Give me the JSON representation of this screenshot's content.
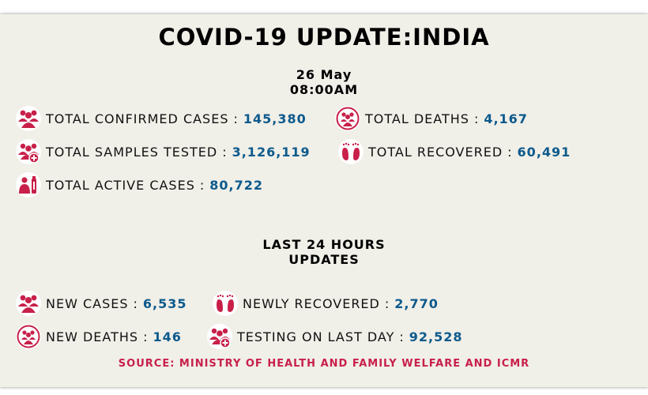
{
  "title": "COVID-19 UPDATE:INDIA",
  "date": {
    "day": "26 May",
    "time": "08:00AM"
  },
  "totals": {
    "confirmed": {
      "label": "TOTAL CONFIRMED CASES",
      "value": "145,380",
      "icon": "people-group-icon"
    },
    "deaths": {
      "label": "TOTAL DEATHS",
      "value": "4,167",
      "icon": "people-circle-icon"
    },
    "samples": {
      "label": "TOTAL SAMPLES TESTED",
      "value": "3,126,119",
      "icon": "people-plus-icon"
    },
    "recovered": {
      "label": "TOTAL RECOVERED",
      "value": "60,491",
      "icon": "feet-icon"
    },
    "active": {
      "label": "TOTAL ACTIVE CASES",
      "value": "80,722",
      "icon": "patient-bottle-icon"
    }
  },
  "last24": {
    "heading_line1": "LAST 24 HOURS",
    "heading_line2": "UPDATES",
    "new_cases": {
      "label": "NEW CASES",
      "value": "6,535",
      "icon": "people-group-icon"
    },
    "newly_recovered": {
      "label": "NEWLY RECOVERED",
      "value": "2,770",
      "icon": "feet-icon"
    },
    "new_deaths": {
      "label": "NEW DEATHS",
      "value": "146",
      "icon": "people-circle-icon"
    },
    "testing": {
      "label": "TESTING ON LAST DAY",
      "value": "92,528",
      "icon": "people-plus-icon"
    }
  },
  "source": "SOURCE: MINISTRY OF HEALTH AND FAMILY WELFARE AND ICMR",
  "colors": {
    "accent": "#c8204a",
    "value": "#0d5a8c",
    "background": "#f0efe8"
  }
}
